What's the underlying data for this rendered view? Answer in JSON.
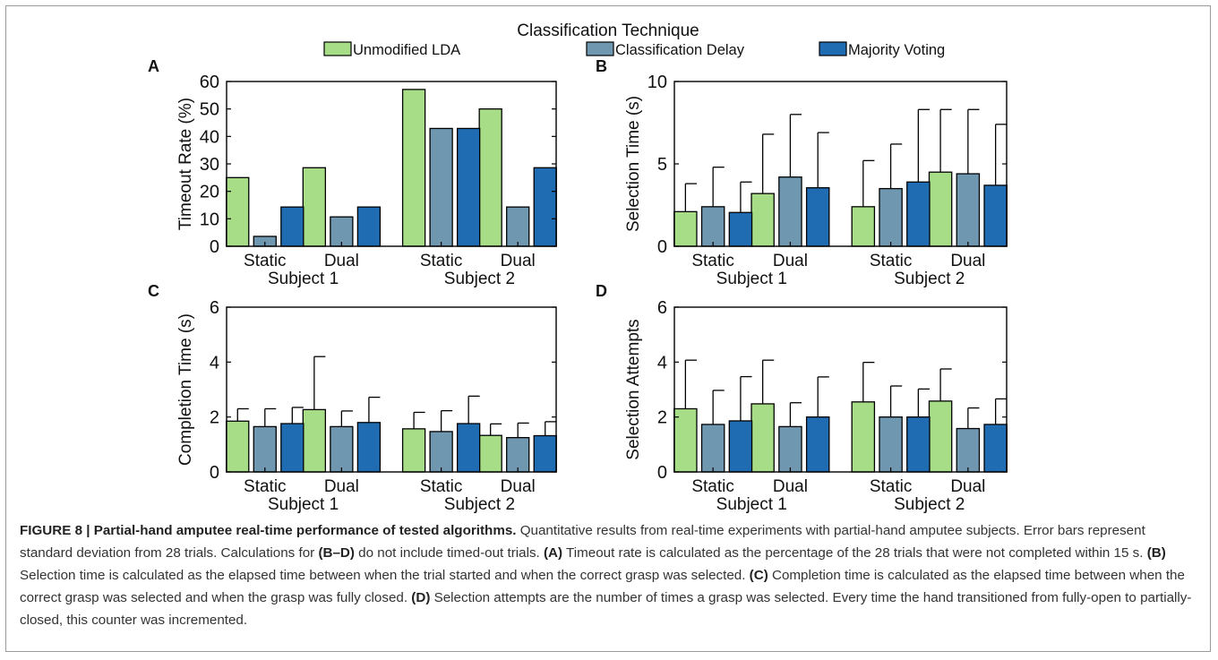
{
  "legend": {
    "title": "Classification Technique",
    "items": [
      {
        "label": "Unmodified LDA",
        "color": "#a7dd87"
      },
      {
        "label": "Classification Delay",
        "color": "#6f97b0"
      },
      {
        "label": "Majority Voting",
        "color": "#1f6cb3"
      }
    ]
  },
  "chart_data": [
    {
      "type": "bar",
      "panel": "A",
      "ylabel": "Timeout Rate (%)",
      "ylim": [
        0,
        60
      ],
      "yticks": [
        0,
        10,
        20,
        30,
        40,
        50,
        60
      ],
      "categories": [
        "Static",
        "Dual",
        "Static",
        "Dual"
      ],
      "groups": [
        "Subject 1",
        "Subject 2"
      ],
      "series": [
        {
          "name": "Unmodified LDA",
          "values": [
            25.0,
            28.6,
            57.1,
            50.0
          ]
        },
        {
          "name": "Classification Delay",
          "values": [
            3.6,
            10.7,
            42.9,
            14.3
          ]
        },
        {
          "name": "Majority Voting",
          "values": [
            14.3,
            14.3,
            42.9,
            28.6
          ]
        }
      ]
    },
    {
      "type": "bar",
      "panel": "B",
      "ylabel": "Selection Time (s)",
      "ylim": [
        0,
        10
      ],
      "yticks": [
        0,
        5,
        10
      ],
      "categories": [
        "Static",
        "Dual",
        "Static",
        "Dual"
      ],
      "groups": [
        "Subject 1",
        "Subject 2"
      ],
      "series": [
        {
          "name": "Unmodified LDA",
          "values": [
            2.1,
            3.2,
            2.4,
            4.5
          ],
          "errors": [
            1.7,
            3.6,
            2.8,
            3.8
          ]
        },
        {
          "name": "Classification Delay",
          "values": [
            2.4,
            4.2,
            3.5,
            4.4
          ],
          "errors": [
            2.4,
            3.8,
            2.7,
            3.9
          ]
        },
        {
          "name": "Majority Voting",
          "values": [
            2.05,
            3.55,
            3.9,
            3.7
          ],
          "errors": [
            1.85,
            3.35,
            4.4,
            3.7
          ]
        }
      ]
    },
    {
      "type": "bar",
      "panel": "C",
      "ylabel": "Completion Time (s)",
      "ylim": [
        0,
        6
      ],
      "yticks": [
        0,
        2,
        4,
        6
      ],
      "categories": [
        "Static",
        "Dual",
        "Static",
        "Dual"
      ],
      "groups": [
        "Subject 1",
        "Subject 2"
      ],
      "series": [
        {
          "name": "Unmodified LDA",
          "values": [
            1.85,
            2.27,
            1.57,
            1.33
          ],
          "errors": [
            0.45,
            1.93,
            0.6,
            0.42
          ]
        },
        {
          "name": "Classification Delay",
          "values": [
            1.65,
            1.65,
            1.47,
            1.25
          ],
          "errors": [
            0.65,
            0.57,
            0.76,
            0.53
          ]
        },
        {
          "name": "Majority Voting",
          "values": [
            1.76,
            1.8,
            1.76,
            1.32
          ],
          "errors": [
            0.59,
            0.92,
            1.0,
            0.51
          ]
        }
      ]
    },
    {
      "type": "bar",
      "panel": "D",
      "ylabel": "Selection Attempts",
      "ylim": [
        0,
        6
      ],
      "yticks": [
        0,
        2,
        4,
        6
      ],
      "categories": [
        "Static",
        "Dual",
        "Static",
        "Dual"
      ],
      "groups": [
        "Subject 1",
        "Subject 2"
      ],
      "series": [
        {
          "name": "Unmodified LDA",
          "values": [
            2.3,
            2.48,
            2.55,
            2.58
          ],
          "errors": [
            1.77,
            1.59,
            1.44,
            1.17
          ]
        },
        {
          "name": "Classification Delay",
          "values": [
            1.73,
            1.65,
            2.0,
            1.58
          ],
          "errors": [
            1.24,
            0.87,
            1.13,
            0.75
          ]
        },
        {
          "name": "Majority Voting",
          "values": [
            1.86,
            2.0,
            2.0,
            1.73
          ],
          "errors": [
            1.61,
            1.46,
            1.02,
            0.93
          ]
        }
      ]
    }
  ],
  "caption": {
    "figure_label": "FIGURE 8 | Partial-hand amputee real-time performance of tested algorithms.",
    "part1": " Quantitative results from real-time experiments with partial-hand amputee subjects. Error bars represent standard deviation from 28 trials. Calculations for ",
    "ref_bd": "(B–D)",
    "part2": " do not include timed-out trials. ",
    "ref_a": "(A)",
    "part3": " Timeout rate is calculated as the percentage of the 28 trials that were not completed within 15 s. ",
    "ref_b": "(B)",
    "part4": " Selection time is calculated as the elapsed time between when the trial started and when the correct grasp was selected. ",
    "ref_c": "(C)",
    "part5": " Completion time is calculated as the elapsed time between when the correct grasp was selected and when the grasp was fully closed. ",
    "ref_d": "(D)",
    "part6": " Selection attempts are the number of times a grasp was selected. Every time the hand transitioned from fully-open to partially-closed, this counter was incremented."
  }
}
